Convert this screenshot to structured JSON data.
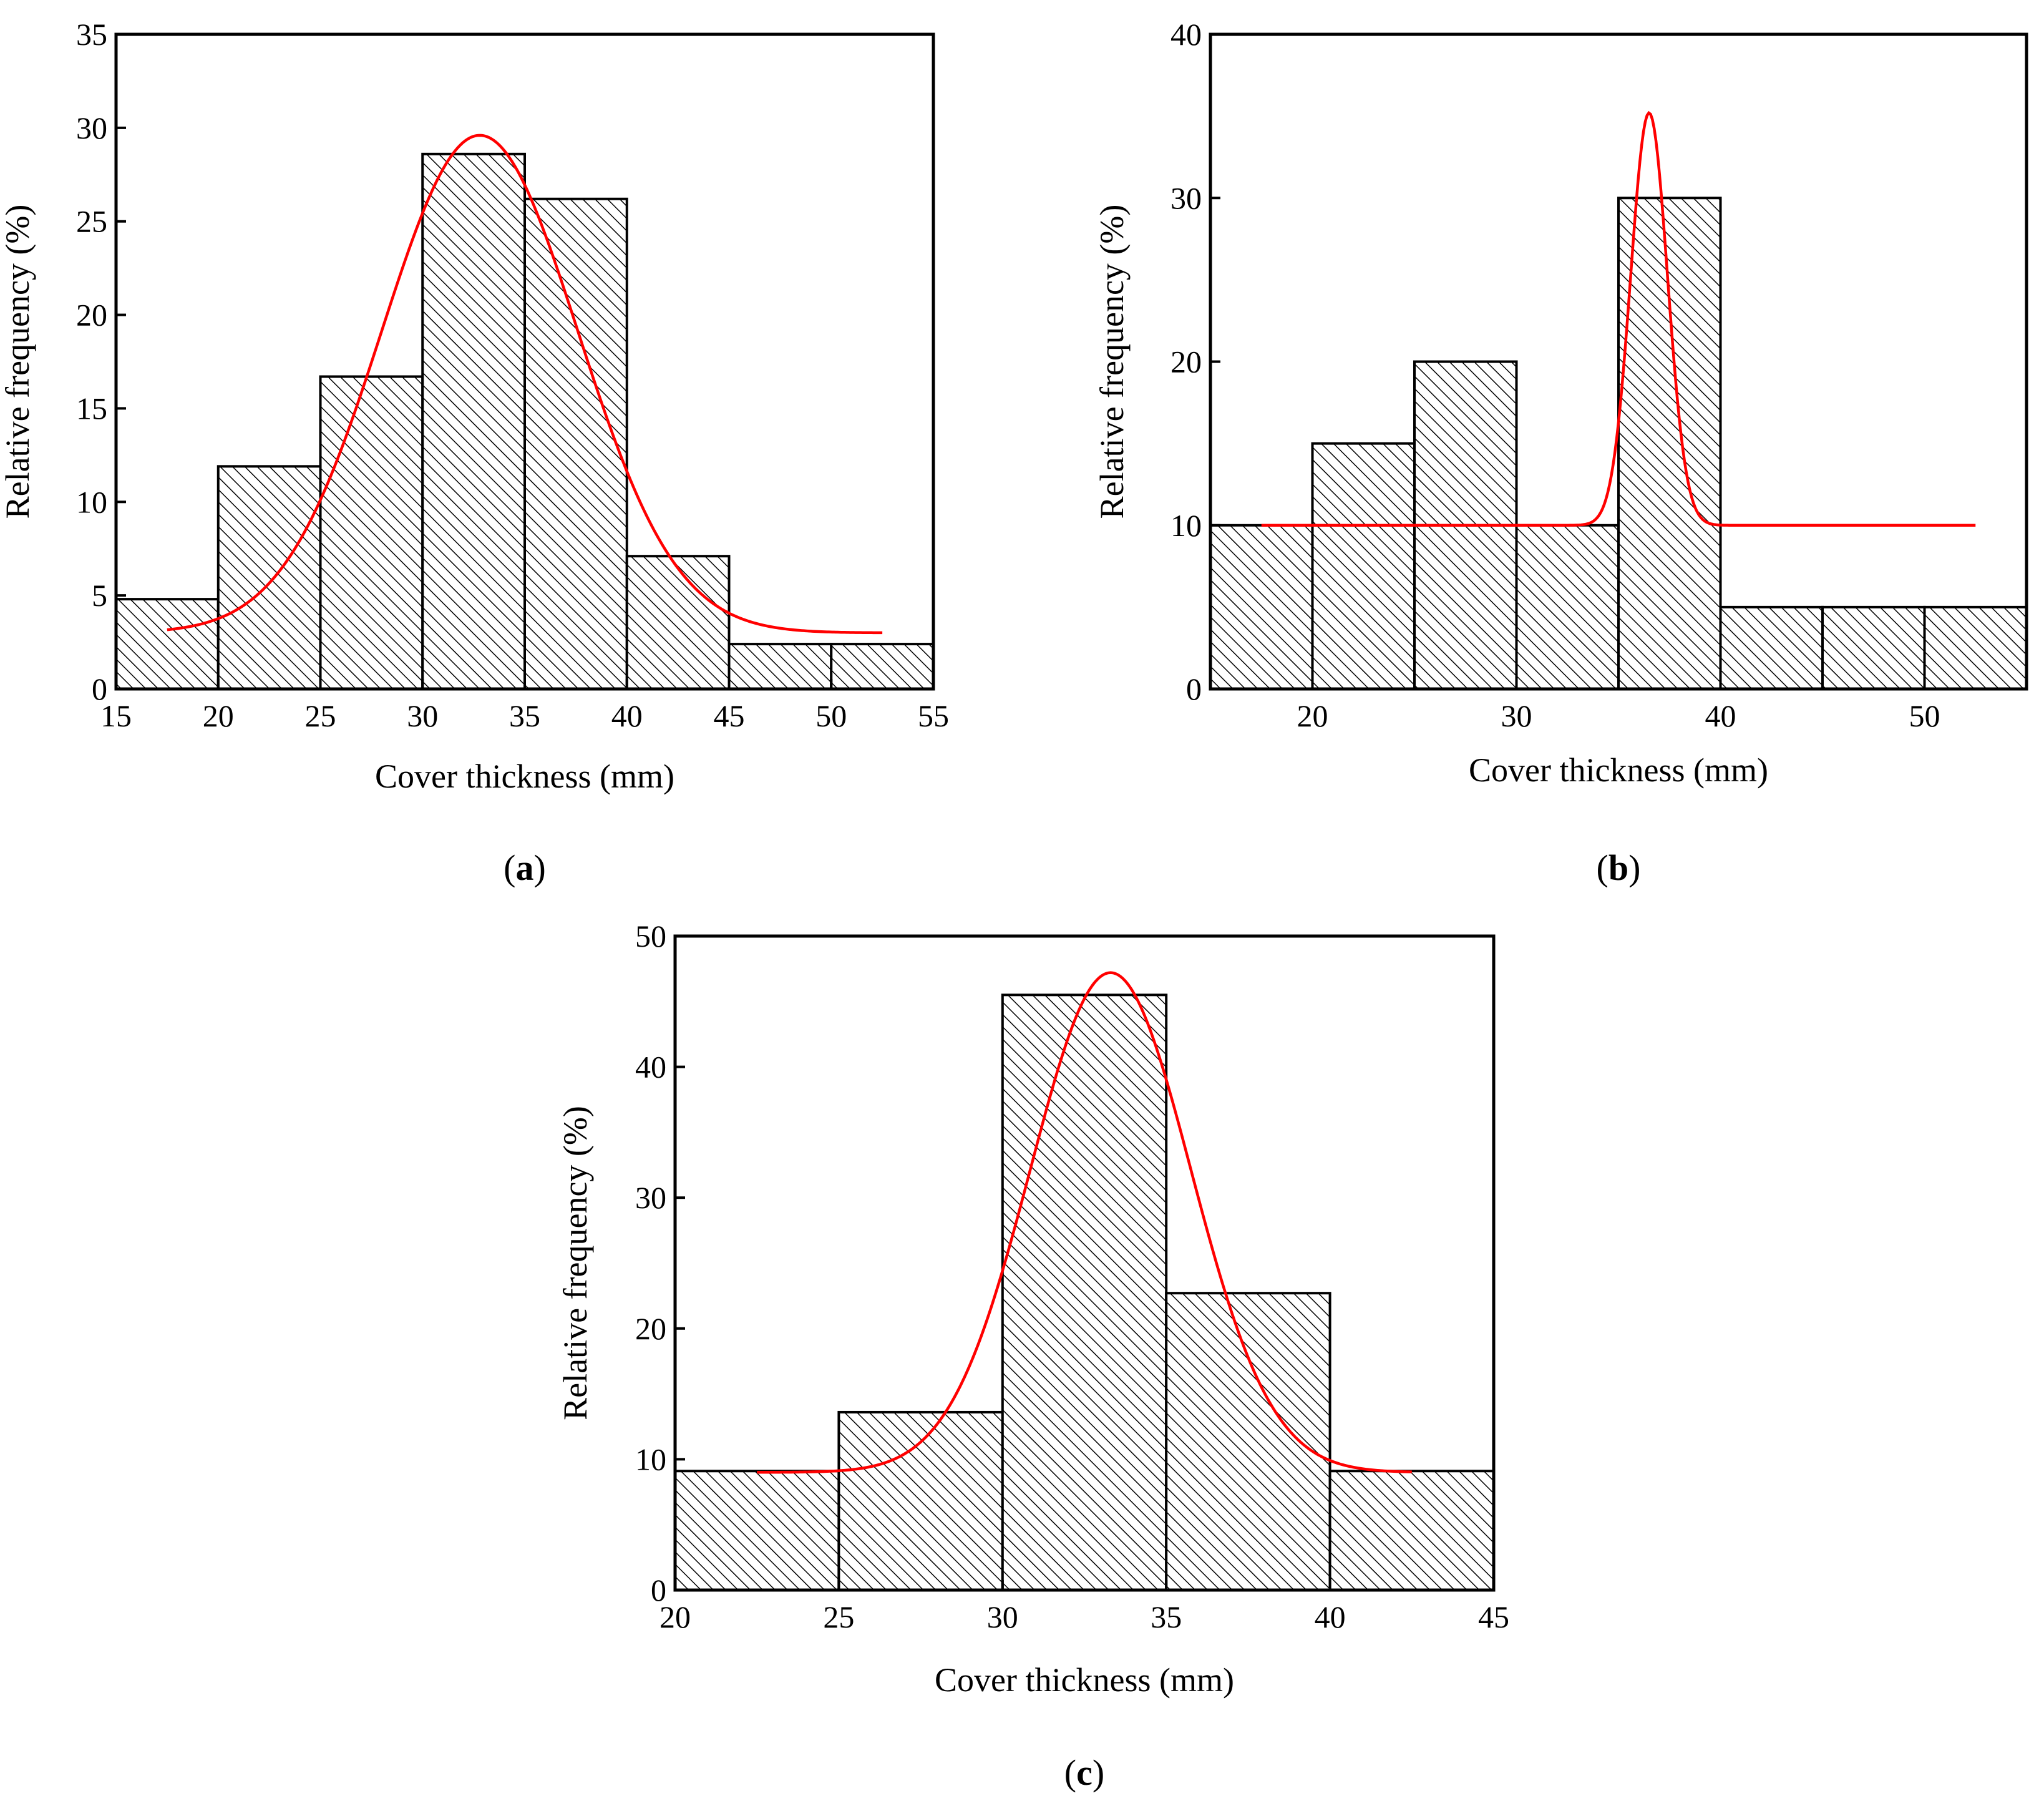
{
  "chart_data": [
    {
      "type": "bar",
      "panel_label": "a",
      "xlabel": "Cover thickness (mm)",
      "ylabel": "Relative frequency (%)",
      "xlim": [
        15,
        55
      ],
      "ylim": [
        0,
        35
      ],
      "xticks": [
        15,
        20,
        25,
        30,
        35,
        40,
        45,
        50,
        55
      ],
      "yticks": [
        0,
        5,
        10,
        15,
        20,
        25,
        30,
        35
      ],
      "bins": [
        {
          "from": 15,
          "to": 20,
          "value": 4.8
        },
        {
          "from": 20,
          "to": 25,
          "value": 11.9
        },
        {
          "from": 25,
          "to": 30,
          "value": 16.7
        },
        {
          "from": 30,
          "to": 35,
          "value": 28.6
        },
        {
          "from": 35,
          "to": 40,
          "value": 26.2
        },
        {
          "from": 40,
          "to": 45,
          "value": 7.1
        },
        {
          "from": 45,
          "to": 50,
          "value": 2.4
        },
        {
          "from": 50,
          "to": 55,
          "value": 2.4
        }
      ],
      "fit": {
        "type": "gaussian",
        "y0": 3.0,
        "amplitude": 26.6,
        "center": 32.8,
        "sigma": 4.8,
        "x_start": 17.5,
        "x_end": 52.5
      }
    },
    {
      "type": "bar",
      "panel_label": "b",
      "xlabel": "Cover thickness (mm)",
      "ylabel": "Relative frequency (%)",
      "xlim": [
        15,
        55
      ],
      "ylim": [
        0,
        40
      ],
      "xticks": [
        20,
        30,
        40,
        50
      ],
      "yticks": [
        0,
        10,
        20,
        30,
        40
      ],
      "bins": [
        {
          "from": 15,
          "to": 20,
          "value": 10
        },
        {
          "from": 20,
          "to": 25,
          "value": 15
        },
        {
          "from": 25,
          "to": 30,
          "value": 20
        },
        {
          "from": 30,
          "to": 35,
          "value": 10
        },
        {
          "from": 35,
          "to": 40,
          "value": 30
        },
        {
          "from": 40,
          "to": 45,
          "value": 5
        },
        {
          "from": 45,
          "to": 50,
          "value": 5
        },
        {
          "from": 50,
          "to": 55,
          "value": 5
        }
      ],
      "fit": {
        "type": "gaussian",
        "y0": 10.0,
        "amplitude": 25.2,
        "center": 36.5,
        "sigma": 0.9,
        "x_start": 17.5,
        "x_end": 52.5
      }
    },
    {
      "type": "bar",
      "panel_label": "c",
      "xlabel": "Cover thickness (mm)",
      "ylabel": "Relative frequency (%)",
      "xlim": [
        20,
        45
      ],
      "ylim": [
        0,
        50
      ],
      "xticks": [
        20,
        25,
        30,
        35,
        40,
        45
      ],
      "yticks": [
        0,
        10,
        20,
        30,
        40,
        50
      ],
      "bins": [
        {
          "from": 20,
          "to": 25,
          "value": 9.1
        },
        {
          "from": 25,
          "to": 30,
          "value": 13.6
        },
        {
          "from": 30,
          "to": 35,
          "value": 45.5
        },
        {
          "from": 35,
          "to": 40,
          "value": 22.7
        },
        {
          "from": 40,
          "to": 45,
          "value": 9.1
        }
      ],
      "fit": {
        "type": "gaussian",
        "y0": 9.0,
        "amplitude": 38.2,
        "center": 33.3,
        "sigma": 2.45,
        "x_start": 22.5,
        "x_end": 42.5
      }
    }
  ]
}
